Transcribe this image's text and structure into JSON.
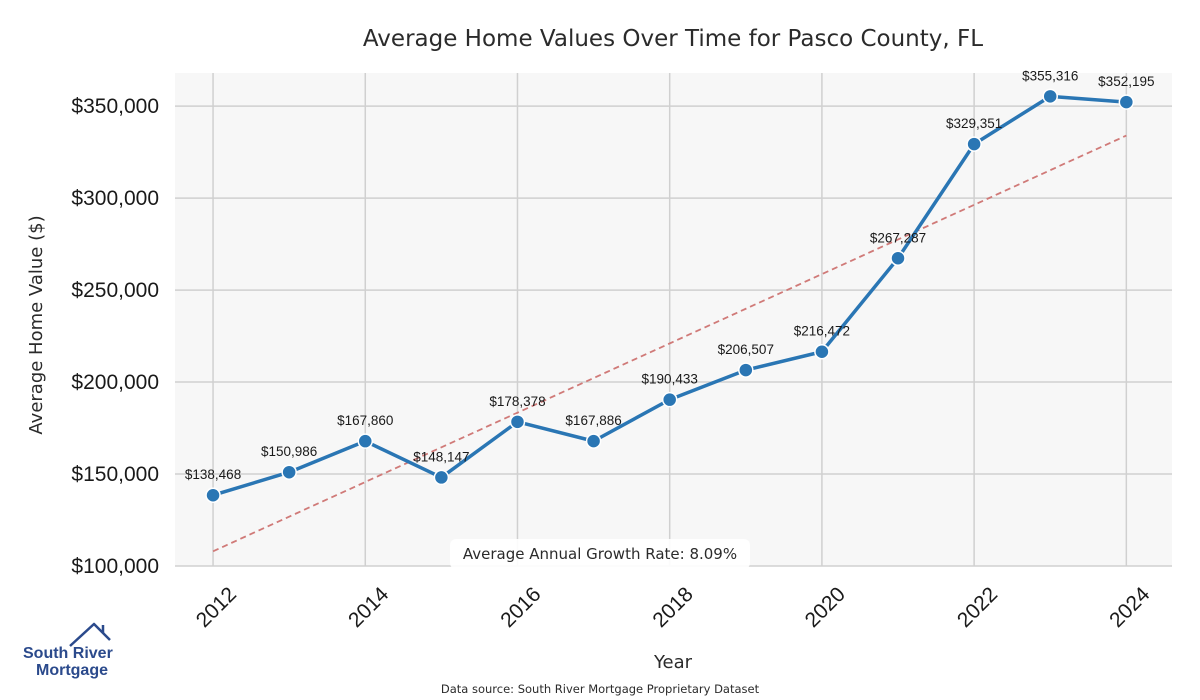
{
  "chart_data": {
    "type": "line",
    "title": "Average Home Values Over Time for Pasco County, FL",
    "xlabel": "Year",
    "ylabel": "Average Home Value ($)",
    "x": [
      2012,
      2013,
      2014,
      2015,
      2016,
      2017,
      2018,
      2019,
      2020,
      2021,
      2022,
      2023,
      2024
    ],
    "series": [
      {
        "values": [
          138468,
          150986,
          167860,
          148147,
          178378,
          167886,
          190433,
          206507,
          216472,
          267287,
          329351,
          355316,
          352195
        ],
        "data_labels": [
          "$138,468",
          "$150,986",
          "$167,860",
          "$148,147",
          "$178,378",
          "$167,886",
          "$190,433",
          "$206,507",
          "$216,472",
          "$267,287",
          "$329,351",
          "$355,316",
          "$352,195"
        ],
        "color": "#2a76b4"
      }
    ],
    "trendline": {
      "start": [
        2012,
        108000
      ],
      "end": [
        2024,
        334000
      ],
      "color": "#d07a78",
      "style": "dashed"
    },
    "xticks": [
      2012,
      2014,
      2016,
      2018,
      2020,
      2022,
      2024
    ],
    "xtick_labels": [
      "2012",
      "2014",
      "2016",
      "2018",
      "2020",
      "2022",
      "2024"
    ],
    "yticks": [
      100000,
      150000,
      200000,
      250000,
      300000,
      350000
    ],
    "ytick_labels": [
      "$100,000",
      "$150,000",
      "$200,000",
      "$250,000",
      "$300,000",
      "$350,000"
    ],
    "xlim": [
      2011.5,
      2024.6
    ],
    "ylim": [
      100000,
      368000
    ],
    "grid": true,
    "annotation": "Average Annual Growth Rate: 8.09%",
    "source": "Data source: South River Mortgage Proprietary Dataset"
  },
  "logo": {
    "line1": "South River",
    "line2": "Mortgage"
  },
  "colors": {
    "plot_bg": "#f7f7f7",
    "grid": "#d0d0d0",
    "line": "#2a76b4",
    "trend": "#d07a78",
    "brand": "#2b4a8c"
  }
}
